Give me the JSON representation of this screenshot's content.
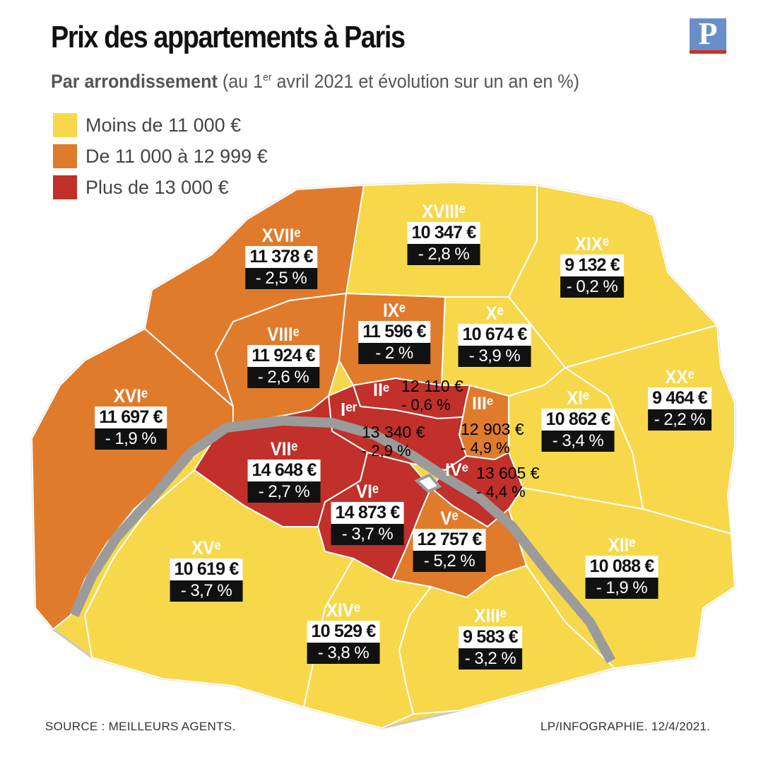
{
  "title": "Prix des appartements à Paris",
  "subtitle": {
    "bold": "Par arrondissement",
    "pre": "(au 1",
    "sup": "er",
    "post": " avril 2021 et évolution sur un an en %)"
  },
  "logo": {
    "letter": "P",
    "bg_color": "#6a8fc8",
    "bar_color": "#c8312a"
  },
  "legend": [
    {
      "label": "Moins de 11 000 €",
      "color": "#f7d84b"
    },
    {
      "label": "De 11 000 à 12 999 €",
      "color": "#e07b2c"
    },
    {
      "label": "Plus de 13 000 €",
      "color": "#c1302a"
    }
  ],
  "river_color": "#9b9b9b",
  "arrondissements": [
    {
      "name": "Iᵉʳ",
      "price": "13 340 €",
      "change": "- 2,9 %"
    },
    {
      "name": "IIᵉ",
      "price": "12 110 €",
      "change": "- 0,6 %"
    },
    {
      "name": "IIIᵉ",
      "price": "12 903 €",
      "change": "- 4,9 %"
    },
    {
      "name": "IVᵉ",
      "price": "13 605 €",
      "change": "- 4,4 %"
    },
    {
      "name": "Vᵉ",
      "price": "12 757 €",
      "change": "- 5,2 %"
    },
    {
      "name": "VIᵉ",
      "price": "14 873 €",
      "change": "- 3,7 %"
    },
    {
      "name": "VIIᵉ",
      "price": "14 648 €",
      "change": "- 2,7 %"
    },
    {
      "name": "VIIIᵉ",
      "price": "11 924 €",
      "change": "- 2,6 %"
    },
    {
      "name": "IXᵉ",
      "price": "11 596 €",
      "change": "- 2 %"
    },
    {
      "name": "Xᵉ",
      "price": "10 674 €",
      "change": "- 3,9 %"
    },
    {
      "name": "XIᵉ",
      "price": "10 862 €",
      "change": "- 3,4 %"
    },
    {
      "name": "XIIᵉ",
      "price": "10 088 €",
      "change": "- 1,9 %"
    },
    {
      "name": "XIIIᵉ",
      "price": "9 583  €",
      "change": "- 3,2 %"
    },
    {
      "name": "XIVᵉ",
      "price": "10 529 €",
      "change": "- 3,8 %"
    },
    {
      "name": "XVᵉ",
      "price": "10 619 €",
      "change": "- 3,7 %"
    },
    {
      "name": "XVIᵉ",
      "price": "11 697 €",
      "change": "- 1,9 %"
    },
    {
      "name": "XVIIᵉ",
      "price": "11 378 €",
      "change": "- 2,5 %"
    },
    {
      "name": "XVIIIᵉ",
      "price": "10 347 €",
      "change": "- 2,8 %"
    },
    {
      "name": "XIXᵉ",
      "price": "9 132 €",
      "change": "- 0,2 %"
    },
    {
      "name": "XXᵉ",
      "price": "9 464 €",
      "change": "- 2,2 %"
    }
  ],
  "source": "SOURCE : MEILLEURS AGENTS.",
  "credit": "LP/INFOGRAPHIE.  12/4/2021."
}
